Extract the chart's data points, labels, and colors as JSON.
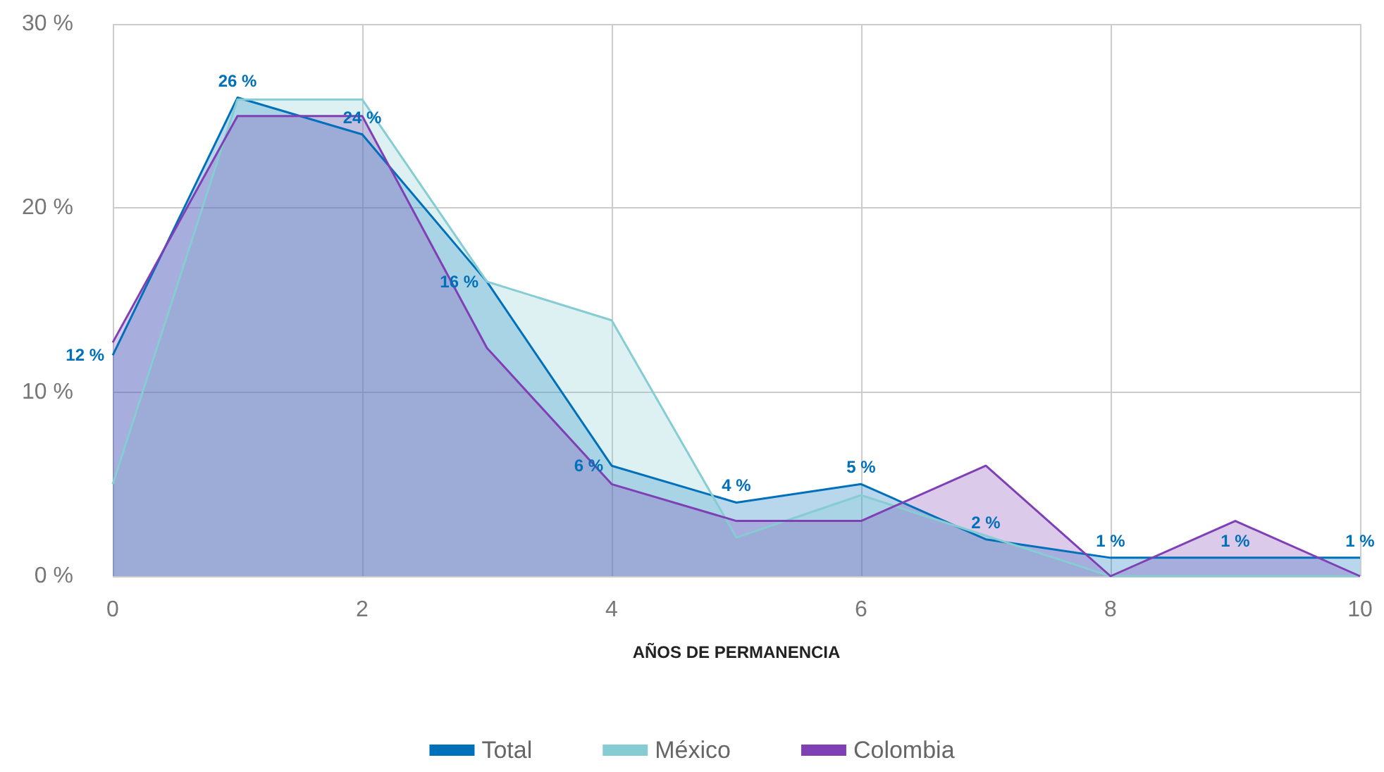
{
  "chart_data": {
    "type": "area",
    "xlabel": "AÑOS DE PERMANENCIA",
    "x": [
      0,
      1,
      2,
      3,
      4,
      5,
      6,
      7,
      8,
      9,
      10
    ],
    "series": [
      {
        "name": "Total",
        "color": "#0070bb",
        "values": [
          12,
          26,
          24,
          16,
          6,
          4,
          5,
          2,
          1,
          1,
          1
        ],
        "value_labels": [
          "12 %",
          "26 %",
          "24 %",
          "16 %",
          "6 %",
          "4 %",
          "5 %",
          "2 %",
          "1 %",
          "1 %",
          "1 %"
        ]
      },
      {
        "name": "México",
        "color": "#86ccd3",
        "values": [
          5.0,
          25.9,
          25.9,
          16.0,
          13.9,
          2.1,
          4.4,
          2.2,
          0,
          0,
          0
        ]
      },
      {
        "name": "Colombia",
        "color": "#7f3fb5",
        "values": [
          12.7,
          25.0,
          25.0,
          12.4,
          5.0,
          3.0,
          3.0,
          6.0,
          0,
          3.0,
          0
        ]
      }
    ],
    "xlim": [
      0,
      10
    ],
    "xticks": [
      0,
      2,
      4,
      6,
      8,
      10
    ],
    "ylim": [
      0,
      30
    ],
    "yticks": [
      {
        "value": 0,
        "label": "0 %"
      },
      {
        "value": 10,
        "label": "10 %"
      },
      {
        "value": 20,
        "label": "20 %"
      },
      {
        "value": 30,
        "label": "30 %"
      }
    ],
    "grid": true,
    "legend": "bottom",
    "marker": "none"
  }
}
